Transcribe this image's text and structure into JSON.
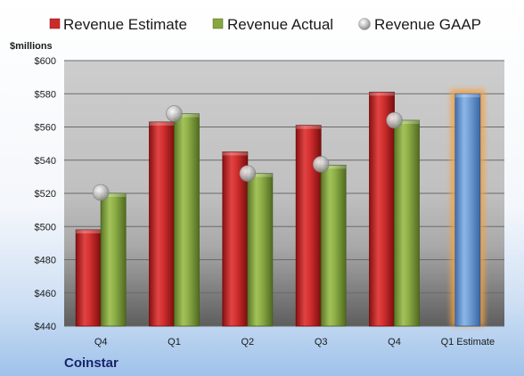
{
  "legend": {
    "items": [
      {
        "label": "Revenue Estimate",
        "color": "#cc2a2a",
        "marker": "square"
      },
      {
        "label": "Revenue Actual",
        "color": "#86a63e",
        "marker": "square"
      },
      {
        "label": "Revenue GAAP",
        "color": "#b8b8b8",
        "marker": "circle"
      }
    ]
  },
  "chart_data": {
    "type": "bar",
    "ylabel": "$millions",
    "ylim": [
      440,
      600
    ],
    "yticks": [
      440,
      460,
      480,
      500,
      520,
      540,
      560,
      580,
      600
    ],
    "ytick_labels": [
      "$440",
      "$460",
      "$480",
      "$500",
      "$520",
      "$540",
      "$560",
      "$580",
      "$600"
    ],
    "categories": [
      "Q4",
      "Q1",
      "Q2",
      "Q3",
      "Q4",
      "Q1 Estimate"
    ],
    "grid": true,
    "legend_position": "top",
    "series": [
      {
        "name": "Revenue Estimate",
        "type": "bar",
        "color": "#cc2a2a",
        "values": [
          498,
          563,
          545,
          561,
          581,
          null
        ]
      },
      {
        "name": "Revenue Actual",
        "type": "bar",
        "color": "#86a63e",
        "values": [
          520,
          568,
          532,
          537,
          564,
          null
        ]
      },
      {
        "name": "Revenue GAAP",
        "type": "scatter",
        "color": "#b8b8b8",
        "values": [
          520.5,
          568,
          532,
          537.5,
          564,
          null
        ]
      },
      {
        "type": "bar",
        "color": "#6e9fd6",
        "highlight": "#f5a040",
        "values": [
          null,
          null,
          null,
          null,
          null,
          580
        ]
      }
    ]
  },
  "footer": {
    "company": "Coinstar"
  }
}
